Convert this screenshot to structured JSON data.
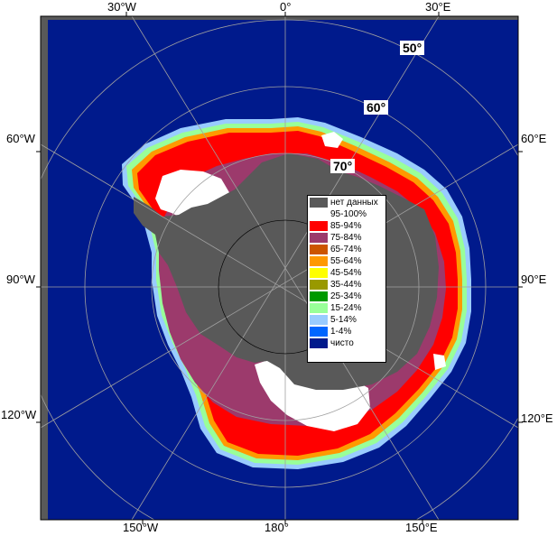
{
  "map": {
    "colors": {
      "ocean": "#001a8c",
      "land": "#555555",
      "no_data": "#595959",
      "frame": "#000000"
    },
    "lon_labels": [
      {
        "id": "lon-30w-top",
        "text": "30°W"
      },
      {
        "id": "lon-0-top",
        "text": "0°"
      },
      {
        "id": "lon-30e-top",
        "text": "30°E"
      },
      {
        "id": "lon-60w",
        "text": "60°W"
      },
      {
        "id": "lon-60e",
        "text": "60°E"
      },
      {
        "id": "lon-90w",
        "text": "90°W"
      },
      {
        "id": "lon-90e",
        "text": "90°E"
      },
      {
        "id": "lon-120w",
        "text": "120°W"
      },
      {
        "id": "lon-120e",
        "text": "120°E"
      },
      {
        "id": "lon-150w",
        "text": "150°W"
      },
      {
        "id": "lon-180",
        "text": "180°"
      },
      {
        "id": "lon-150e",
        "text": "150°E"
      }
    ],
    "lat_labels": [
      {
        "id": "lat-50",
        "text": "50°"
      },
      {
        "id": "lat-60",
        "text": "60°"
      },
      {
        "id": "lat-70",
        "text": "70°"
      }
    ]
  },
  "legend": {
    "items": [
      {
        "label": "нет данных",
        "color": "#595959"
      },
      {
        "label": "95-100%",
        "color": "#ffffff"
      },
      {
        "label": "85-94%",
        "color": "#ff0000"
      },
      {
        "label": "75-84%",
        "color": "#9c3a6c"
      },
      {
        "label": "65-74%",
        "color": "#cc5500"
      },
      {
        "label": "55-64%",
        "color": "#ff9900"
      },
      {
        "label": "45-54%",
        "color": "#ffff00"
      },
      {
        "label": "35-44%",
        "color": "#999900"
      },
      {
        "label": "25-34%",
        "color": "#009900"
      },
      {
        "label": "15-24%",
        "color": "#99ff99"
      },
      {
        "label": "5-14%",
        "color": "#99ccff"
      },
      {
        "label": "1-4%",
        "color": "#0066ff"
      },
      {
        "label": "чисто",
        "color": "#001a8c"
      }
    ]
  }
}
